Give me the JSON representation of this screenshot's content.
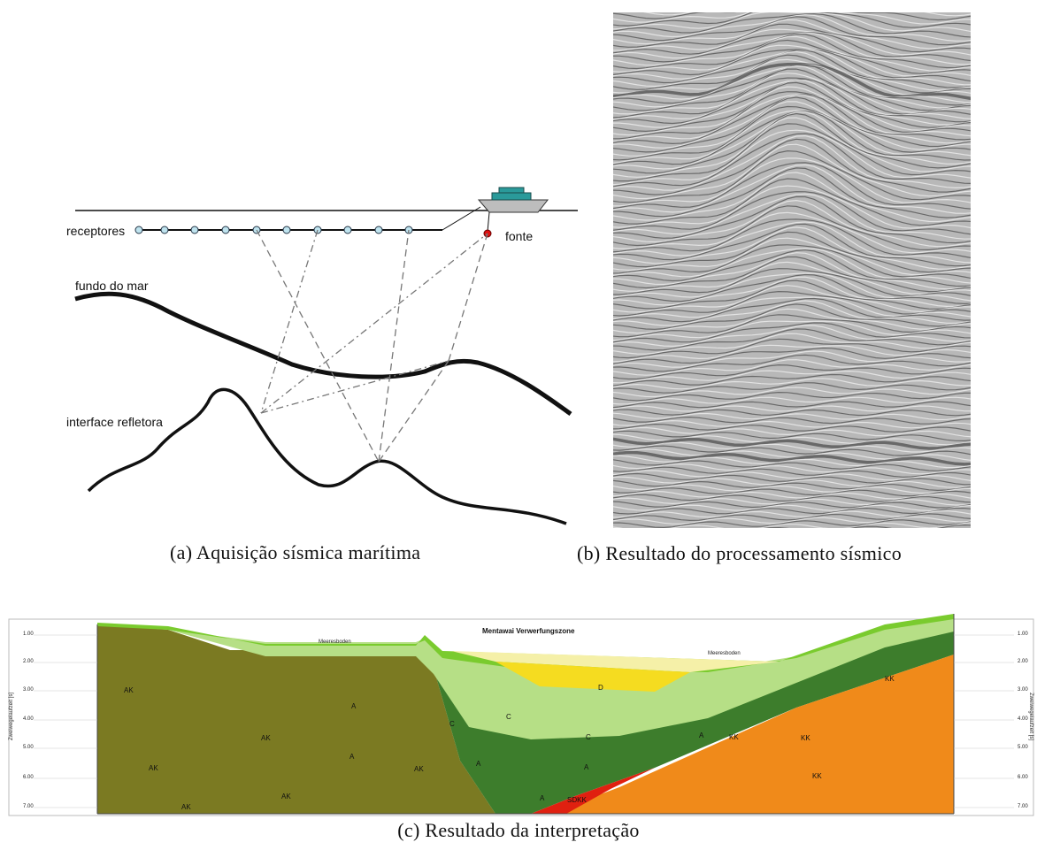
{
  "panel_a": {
    "labels": {
      "receivers": "receptores",
      "source": "fonte",
      "seafloor": "fundo do mar",
      "reflector": "interface refletora"
    },
    "caption": "(a) Aquisição sísmica marítima"
  },
  "panel_b": {
    "caption": "(b) Resultado do processamento sísmico"
  },
  "panel_c": {
    "title": "Mentawai Verwerfungszone",
    "seafloor_labels": [
      "Meeresboden",
      "Meeresboden"
    ],
    "left_ticks": [
      "1.00",
      "2.00",
      "3.00",
      "4.00",
      "5.00",
      "6.00",
      "7.00"
    ],
    "right_ticks": [
      "1.00",
      "2.00",
      "3.00",
      "4.00",
      "5.00",
      "6.00",
      "7.00"
    ],
    "left_axis_label": "Zweiwegelaufzeit [s]",
    "right_axis_label": "Zweiwegelaufzeit [s]",
    "layer_labels": [
      "AK",
      "AK",
      "AK",
      "AK",
      "AK",
      "AK",
      "A",
      "A",
      "A",
      "A",
      "A",
      "A",
      "C",
      "C",
      "C",
      "D",
      "KK",
      "KK",
      "KK",
      "KK",
      "SDKK"
    ],
    "caption": "(c) Resultado da interpretação"
  }
}
